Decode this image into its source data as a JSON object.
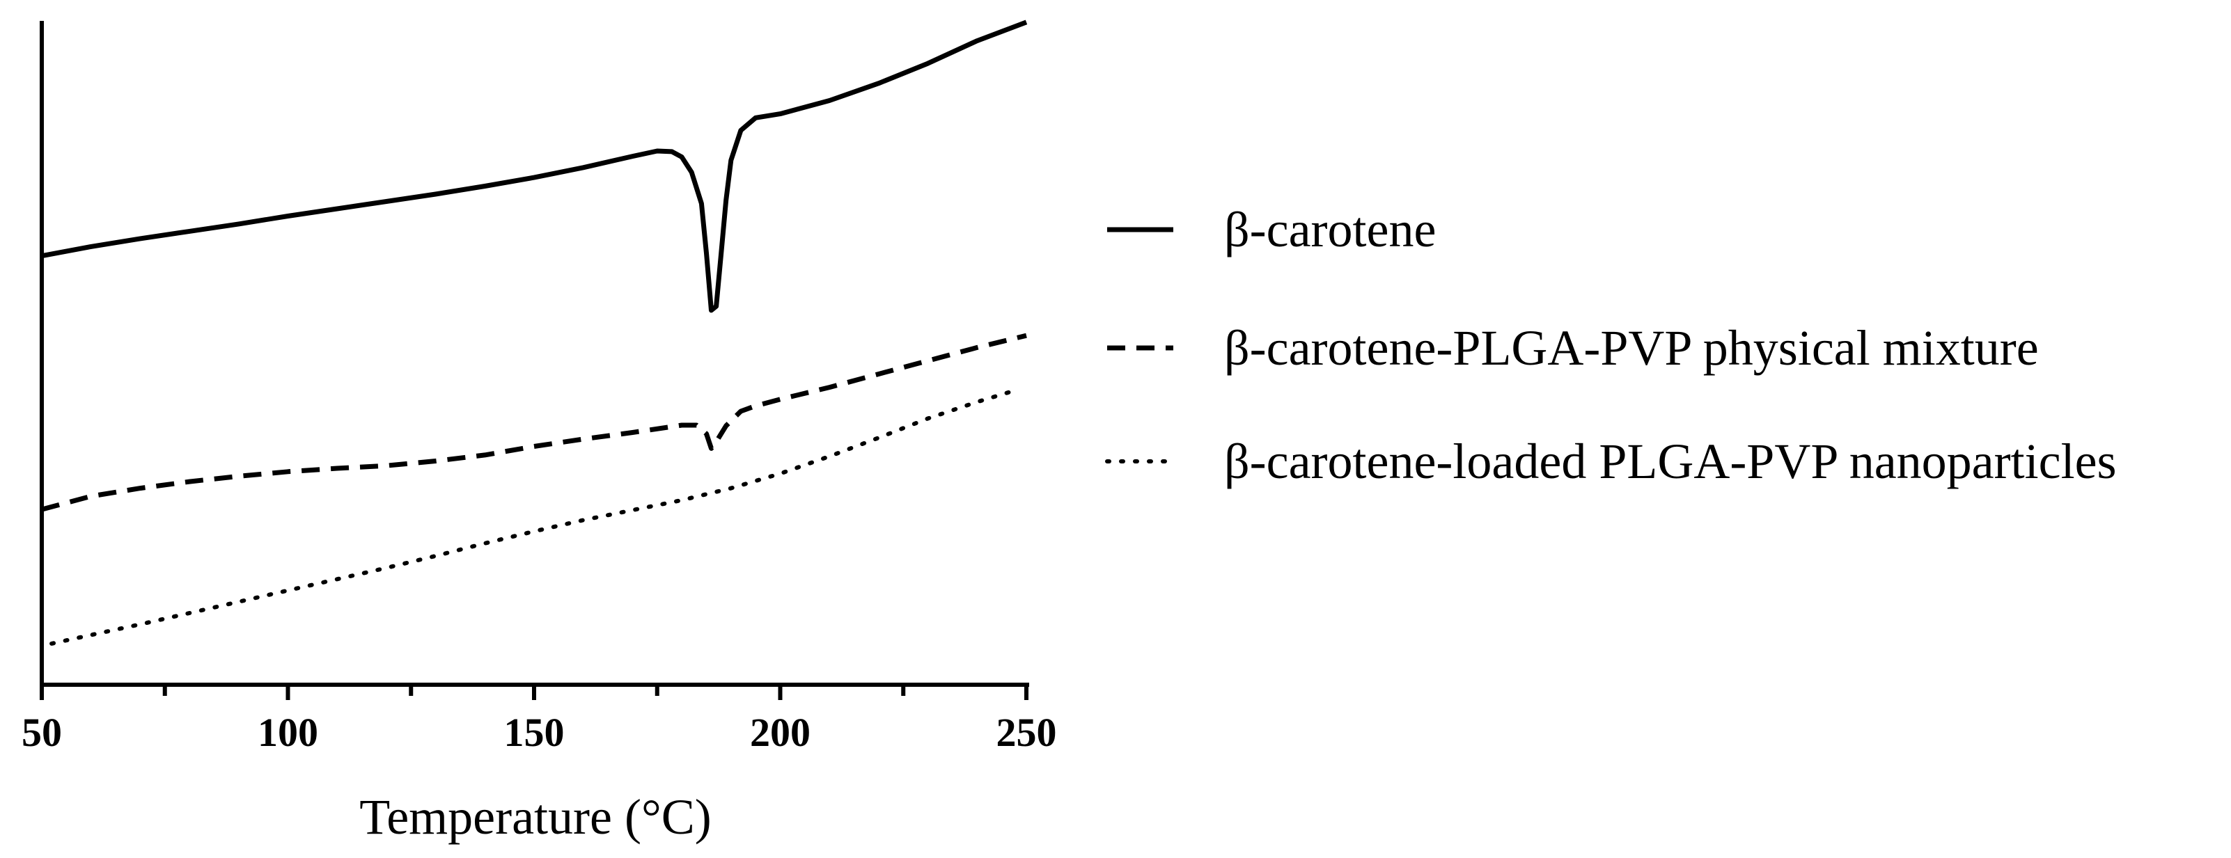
{
  "chart_data": {
    "type": "line",
    "title": "",
    "xlabel": "Temperature (°C)",
    "ylabel": "",
    "xlim": [
      50,
      250
    ],
    "ylim": [
      0,
      100
    ],
    "x_ticks": [
      50,
      100,
      150,
      200,
      250
    ],
    "x_minor_step": 25,
    "y_axis_tick_labels": false,
    "grid": false,
    "legend_position": "right",
    "series": [
      {
        "name": "β-carotene",
        "line_style": "solid",
        "color": "#000000",
        "points": [
          [
            50,
            64.6
          ],
          [
            60,
            66.0
          ],
          [
            70,
            67.2
          ],
          [
            80,
            68.3
          ],
          [
            90,
            69.4
          ],
          [
            100,
            70.6
          ],
          [
            110,
            71.7
          ],
          [
            120,
            72.8
          ],
          [
            130,
            73.9
          ],
          [
            140,
            75.1
          ],
          [
            150,
            76.4
          ],
          [
            160,
            77.9
          ],
          [
            170,
            79.6
          ],
          [
            175,
            80.4
          ],
          [
            178,
            80.3
          ],
          [
            180,
            79.5
          ],
          [
            182,
            77.2
          ],
          [
            184,
            72.5
          ],
          [
            185,
            65.0
          ],
          [
            186,
            56.4
          ],
          [
            187,
            57.0
          ],
          [
            188,
            65.0
          ],
          [
            189,
            73.0
          ],
          [
            190,
            79.0
          ],
          [
            192,
            83.5
          ],
          [
            195,
            85.4
          ],
          [
            200,
            86.0
          ],
          [
            210,
            88.0
          ],
          [
            220,
            90.6
          ],
          [
            230,
            93.6
          ],
          [
            240,
            97.0
          ],
          [
            250,
            99.8
          ]
        ]
      },
      {
        "name": "β-carotene-PLGA-PVP physical mixture",
        "line_style": "dashed",
        "color": "#000000",
        "points": [
          [
            50,
            26.4
          ],
          [
            60,
            28.4
          ],
          [
            70,
            29.6
          ],
          [
            80,
            30.6
          ],
          [
            90,
            31.4
          ],
          [
            100,
            32.1
          ],
          [
            110,
            32.6
          ],
          [
            120,
            33.0
          ],
          [
            130,
            33.7
          ],
          [
            140,
            34.6
          ],
          [
            150,
            35.9
          ],
          [
            160,
            37.0
          ],
          [
            170,
            38.0
          ],
          [
            180,
            39.1
          ],
          [
            183,
            39.1
          ],
          [
            185,
            37.8
          ],
          [
            186,
            35.6
          ],
          [
            187,
            36.6
          ],
          [
            189,
            39.0
          ],
          [
            192,
            41.2
          ],
          [
            195,
            42.0
          ],
          [
            200,
            43.0
          ],
          [
            210,
            44.8
          ],
          [
            220,
            46.8
          ],
          [
            230,
            48.8
          ],
          [
            240,
            50.8
          ],
          [
            250,
            52.6
          ]
        ]
      },
      {
        "name": "β-carotene-loaded PLGA-PVP nanoparticles",
        "line_style": "dotted",
        "color": "#000000",
        "points": [
          [
            52,
            6.2
          ],
          [
            60,
            7.5
          ],
          [
            70,
            9.1
          ],
          [
            80,
            10.8
          ],
          [
            90,
            12.5
          ],
          [
            100,
            14.2
          ],
          [
            110,
            15.9
          ],
          [
            120,
            17.6
          ],
          [
            130,
            19.4
          ],
          [
            140,
            21.3
          ],
          [
            150,
            23.1
          ],
          [
            160,
            24.8
          ],
          [
            170,
            26.3
          ],
          [
            180,
            27.8
          ],
          [
            190,
            29.6
          ],
          [
            200,
            31.8
          ],
          [
            210,
            34.4
          ],
          [
            220,
            37.2
          ],
          [
            230,
            40.1
          ],
          [
            240,
            42.6
          ],
          [
            248,
            44.4
          ]
        ]
      }
    ]
  }
}
